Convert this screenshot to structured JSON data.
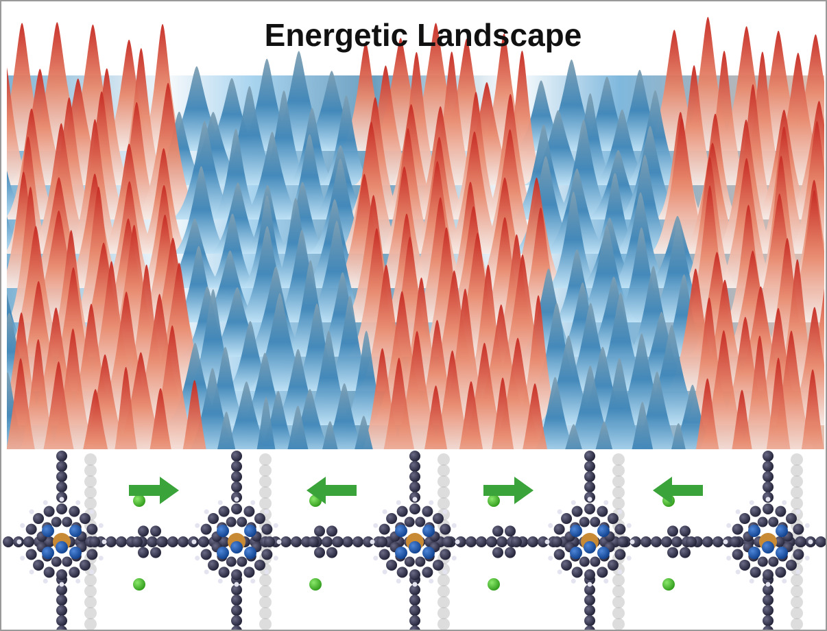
{
  "title": "Energetic Landscape"
}
